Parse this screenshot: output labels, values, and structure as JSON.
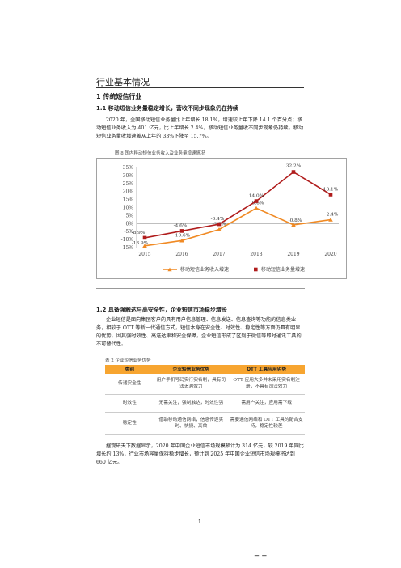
{
  "section_title": "行业基本情况",
  "h2_title": "1 传统短信行业",
  "h3a": "1.1 移动短信业务量稳定增长，营收不同步现象仍在持续",
  "para1": "2020 年，全国移动短信业务量比上年增长 18.1%，增速较上年下降 14.1 个百分点；移动短信业务收入为 401 亿元，比上年增长 2.4%，移动短信业务量收不同步现象仍持续，移动短信业务量收增速差从上年的 33%下降至 15.7%。",
  "figure_caption": "图 8 国内移动短信业务收入及业务量增速情况",
  "chart_data": {
    "type": "line",
    "categories": [
      "2015",
      "2016",
      "2017",
      "2018",
      "2019",
      "2020"
    ],
    "ylim": [
      -15,
      35
    ],
    "yticks": [
      "35%",
      "30%",
      "25%",
      "20%",
      "15%",
      "10%",
      "5%",
      "0%",
      "-5%",
      "-10%",
      "-15%"
    ],
    "series": [
      {
        "name": "移动短信业务收入增速",
        "values": [
          -13.9,
          -10.6,
          -3.7,
          9.6,
          -0.8,
          2.4
        ],
        "labels": [
          "-13.9%",
          "-10.6%",
          "-3.7%",
          "9.6%",
          "-0.8%",
          "2.4%"
        ],
        "color": "#f08a24"
      },
      {
        "name": "移动短信业务量增速",
        "values": [
          -8.9,
          -4.6,
          -0.4,
          14.0,
          32.2,
          18.1
        ],
        "labels": [
          "-8.9%",
          "-4.6%",
          "-0.4%",
          "14.0%",
          "32.2%",
          "18.1%"
        ],
        "color": "#b01c1c"
      }
    ],
    "legend": "bottom"
  },
  "h3b": "1.2 具备强触达与高安全性，企业短信市场稳步增长",
  "para2": "企业短信是面向集团客户的具有用户信息管理、信息发送、信息查询等功能的信息类业务，相较于 OTT 等新一代通信方式，短信本身在安全性、时效性、稳定性等方面仍具有明显的优势，因其强时效性、高送达率和安全保障，企业短信形成了区别于微信等即时通讯工具的不可替代性。",
  "table_caption": "表 2 企业短信业务优势",
  "table": {
    "headers": [
      "类别",
      "企业短信业务优势",
      "OTT 工具应用劣势"
    ],
    "rows": [
      [
        "传递安全性",
        "用户手机号码实行实名制，具有司法追溯效力",
        "OTT 应用大多并未采用实名制注册，不具有司法效力"
      ],
      [
        "时效性",
        "无需关注，强制触达，时效性强",
        "需用户关注，应用需下载"
      ],
      [
        "稳定性",
        "借助移动通信网络，信息传递实时、快捷、高效",
        "需要通信网络和 OTT 工具的配合支持，稳定性较差"
      ]
    ]
  },
  "para3": "据观研天下数据显示，2020 年中国企业短信市场规模预计为 314 亿元，较 2019 年同比增长约 13%，行业市场容量保持稳步增长，预计到 2025 年中国企业短信市场规模将达到 660 亿元。",
  "page_number": "1",
  "footer_mark": "－ －"
}
